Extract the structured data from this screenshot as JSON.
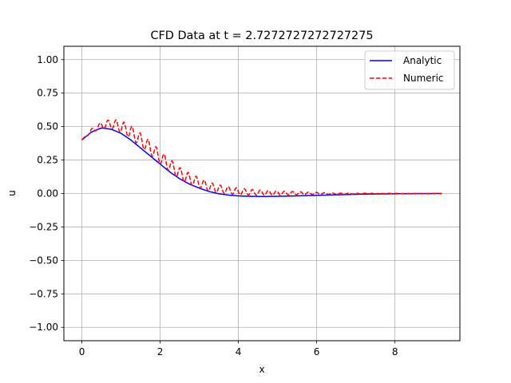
{
  "chart_data": {
    "type": "line",
    "title": "CFD Data at t = 2.7272727272727275",
    "xlabel": "x",
    "ylabel": "u",
    "xlim": [
      -0.46,
      9.66
    ],
    "ylim": [
      -1.1,
      1.1
    ],
    "grid": true,
    "legend_position": "top-right",
    "x_ticks": [
      0,
      2,
      4,
      6,
      8
    ],
    "x_tick_labels": [
      "0",
      "2",
      "4",
      "6",
      "8"
    ],
    "y_ticks": [
      1.0,
      0.75,
      0.5,
      0.25,
      0.0,
      -0.25,
      -0.5,
      -0.75,
      -1.0
    ],
    "y_tick_labels": [
      "1.00",
      "0.75",
      "0.50",
      "0.25",
      "0.00",
      "−0.25",
      "−0.50",
      "−0.75",
      "−1.00"
    ],
    "series": [
      {
        "name": "Analytic",
        "color": "#0000ff",
        "style": "solid",
        "x": [
          0,
          0.25,
          0.5,
          0.75,
          1.0,
          1.25,
          1.5,
          1.75,
          2.0,
          2.25,
          2.5,
          2.75,
          3.0,
          3.25,
          3.5,
          3.75,
          4.0,
          4.25,
          4.5,
          4.75,
          5.0,
          5.5,
          6.0,
          6.5,
          7.0,
          7.5,
          8.0,
          8.5,
          9.2
        ],
        "y": [
          0.4,
          0.46,
          0.49,
          0.48,
          0.45,
          0.4,
          0.34,
          0.28,
          0.22,
          0.16,
          0.11,
          0.07,
          0.04,
          0.015,
          -0.002,
          -0.012,
          -0.018,
          -0.021,
          -0.022,
          -0.022,
          -0.021,
          -0.018,
          -0.014,
          -0.01,
          -0.006,
          -0.004,
          -0.002,
          -0.001,
          0.0
        ]
      },
      {
        "name": "Numeric",
        "color": "#ff0000",
        "style": "dashed",
        "x": [
          0,
          0.25,
          0.5,
          0.75,
          1.0,
          1.25,
          1.5,
          1.75,
          2.0,
          2.25,
          2.5,
          2.75,
          3.0,
          3.25,
          3.5,
          3.75,
          4.0,
          4.25,
          4.5,
          4.75,
          5.0,
          5.5,
          6.0,
          6.5,
          7.0,
          7.5,
          8.0,
          8.5,
          9.2
        ],
        "y": [
          0.4,
          0.47,
          0.51,
          0.52,
          0.5,
          0.46,
          0.4,
          0.34,
          0.27,
          0.21,
          0.15,
          0.11,
          0.08,
          0.05,
          0.035,
          0.025,
          0.015,
          0.01,
          0.007,
          0.005,
          0.003,
          0.002,
          0.0,
          -0.002,
          -0.001,
          0.0,
          0.0,
          0.0,
          0.0
        ],
        "oscillation_amplitude": [
          0.0,
          0.015,
          0.025,
          0.035,
          0.045,
          0.048,
          0.05,
          0.05,
          0.05,
          0.048,
          0.045,
          0.042,
          0.038,
          0.034,
          0.03,
          0.027,
          0.025,
          0.022,
          0.02,
          0.018,
          0.016,
          0.012,
          0.008,
          0.005,
          0.003,
          0.002,
          0.001,
          0.0,
          0.0
        ]
      }
    ]
  }
}
